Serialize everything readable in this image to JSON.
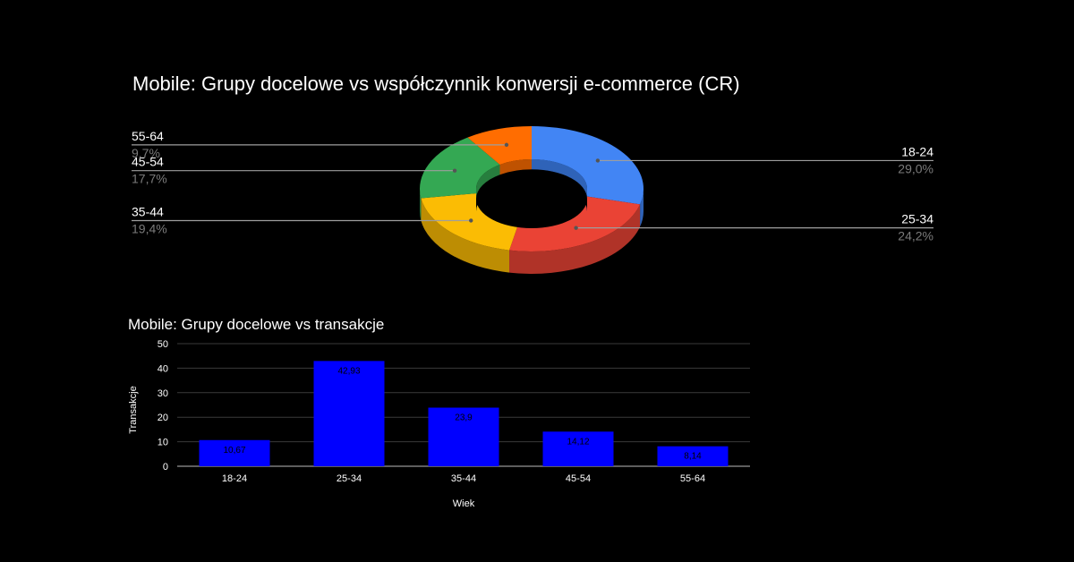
{
  "chart_data": [
    {
      "type": "pie",
      "title": "Mobile: Grupy docelowe vs współczynnik konwersji e-commerce (CR)",
      "style": "3d-donut",
      "slices": [
        {
          "label": "18-24",
          "value": 29.0,
          "percent_label": "29,0%",
          "color": "#4285F4",
          "side_color": "#2f63b8"
        },
        {
          "label": "25-34",
          "value": 24.2,
          "percent_label": "24,2%",
          "color": "#EA4335",
          "side_color": "#b03328"
        },
        {
          "label": "35-44",
          "value": 19.4,
          "percent_label": "19,4%",
          "color": "#FBBC04",
          "side_color": "#bd8d03"
        },
        {
          "label": "45-54",
          "value": 17.7,
          "percent_label": "17,7%",
          "color": "#34A853",
          "side_color": "#277e3e"
        },
        {
          "label": "55-64",
          "value": 9.7,
          "percent_label": "9,7%",
          "color": "#FF6D01",
          "side_color": "#bf5201"
        }
      ]
    },
    {
      "type": "bar",
      "title": "Mobile: Grupy docelowe vs transakcje",
      "xlabel": "Wiek",
      "ylabel": "Transakcje",
      "categories": [
        "18-24",
        "25-34",
        "35-44",
        "45-54",
        "55-64"
      ],
      "values": [
        10.67,
        42.93,
        23.9,
        14.12,
        8.14
      ],
      "data_labels": [
        "10,67",
        "42,93",
        "23,9",
        "14,12",
        "8,14"
      ],
      "ylim": [
        0,
        50
      ],
      "yticks": [
        0,
        10,
        20,
        30,
        40,
        50
      ],
      "bar_color": "#0000FF",
      "grid": true
    }
  ]
}
